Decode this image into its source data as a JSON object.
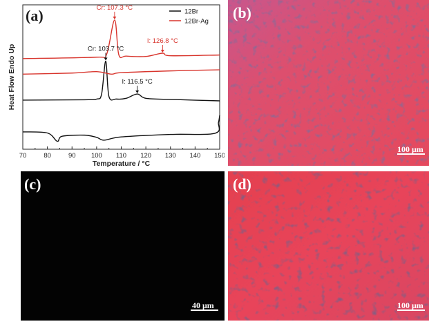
{
  "panels": {
    "a": {
      "letter": "(a)"
    },
    "b": {
      "letter": "(b)",
      "scalebar": "100 μm"
    },
    "c": {
      "letter": "(c)",
      "scalebar": "40 μm"
    },
    "d": {
      "letter": "(d)",
      "scalebar": "100 μm"
    }
  },
  "colors": {
    "black_series": "#111111",
    "red_series": "#d8342c",
    "micrograph_red": "#e2475a",
    "micrograph_dark": "#2d2650",
    "black_panel": "#030303"
  },
  "chart_data": {
    "type": "line",
    "xlabel": "Temperature / °C",
    "ylabel": "Heat Flow Endo Up",
    "xlim": [
      70,
      150
    ],
    "x_ticks": [
      70,
      80,
      90,
      100,
      110,
      120,
      130,
      140,
      150
    ],
    "legend_placement": "top-right",
    "series": [
      {
        "name": "12Br",
        "color": "#111111",
        "heating_curve": [
          [
            70,
            -0.2
          ],
          [
            95,
            -0.15
          ],
          [
            100,
            -0.05
          ],
          [
            102,
            0.6
          ],
          [
            103.7,
            5.2
          ],
          [
            105,
            0.3
          ],
          [
            108,
            -0.05
          ],
          [
            112,
            0.05
          ],
          [
            116.5,
            0.65
          ],
          [
            120,
            0.05
          ],
          [
            130,
            -0.1
          ],
          [
            150,
            -0.3
          ]
        ],
        "cooling_curve": [
          [
            70,
            -4.6
          ],
          [
            80,
            -4.75
          ],
          [
            84,
            -5.9
          ],
          [
            86,
            -5.2
          ],
          [
            95,
            -5.05
          ],
          [
            100,
            -5.35
          ],
          [
            103,
            -5.75
          ],
          [
            110,
            -5.3
          ],
          [
            130,
            -4.95
          ],
          [
            148,
            -4.8
          ],
          [
            149.5,
            -3.3
          ],
          [
            150,
            -2.3
          ]
        ]
      },
      {
        "name": "12Br-Ag",
        "color": "#d8342c",
        "heating_curve": [
          [
            70,
            5.55
          ],
          [
            100,
            5.75
          ],
          [
            104,
            6.1
          ],
          [
            107.3,
            10.9
          ],
          [
            109,
            6.1
          ],
          [
            112,
            5.9
          ],
          [
            120,
            5.85
          ],
          [
            126.8,
            6.3
          ],
          [
            130,
            5.95
          ],
          [
            150,
            6.05
          ]
        ],
        "cooling_curve": [
          [
            70,
            3.4
          ],
          [
            90,
            3.55
          ],
          [
            100,
            3.75
          ],
          [
            106,
            3.4
          ],
          [
            110,
            3.6
          ],
          [
            130,
            3.85
          ],
          [
            150,
            4.0
          ]
        ]
      }
    ],
    "annotations": [
      {
        "text": "Cr: 107.3 °C",
        "x": 107.3,
        "y": 10.9,
        "series": "12Br-Ag"
      },
      {
        "text": "I: 126.8 °C",
        "x": 126.8,
        "y": 6.3,
        "series": "12Br-Ag"
      },
      {
        "text": "Cr: 103.7 °C",
        "x": 103.7,
        "y": 5.2,
        "series": "12Br"
      },
      {
        "text": "I: 116.5 °C",
        "x": 116.5,
        "y": 0.65,
        "series": "12Br"
      }
    ]
  }
}
